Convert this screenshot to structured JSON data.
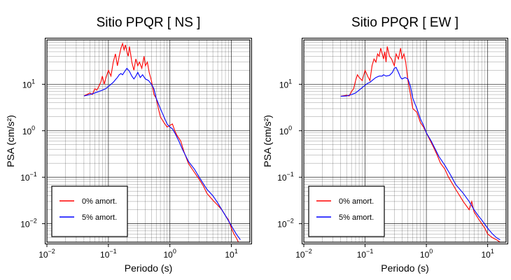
{
  "colors": {
    "red": "#ff0000",
    "blue": "#0000ff",
    "grid": "#000000",
    "axis": "#000000"
  },
  "chart_data": [
    {
      "type": "line",
      "title": "Sitio PPQR [ NS ]",
      "xlabel": "Periodo (s)",
      "ylabel": "PSA (cm/s²)",
      "x_scale": "log",
      "y_scale": "log",
      "xlim": [
        0.01,
        20
      ],
      "ylim": [
        0.004,
        90
      ],
      "x_ticks": [
        {
          "v": 0.01,
          "b": "10",
          "e": "−2"
        },
        {
          "v": 0.1,
          "b": "10",
          "e": "−1"
        },
        {
          "v": 1,
          "b": "10",
          "e": "0"
        },
        {
          "v": 10,
          "b": "10",
          "e": "1"
        }
      ],
      "y_ticks": [
        {
          "v": 0.01,
          "b": "10",
          "e": "−2"
        },
        {
          "v": 0.1,
          "b": "10",
          "e": "−1"
        },
        {
          "v": 1,
          "b": "10",
          "e": "0"
        },
        {
          "v": 10,
          "b": "10",
          "e": "1"
        }
      ],
      "grid": true,
      "legend_position": "bottom-left",
      "series": [
        {
          "name": "0% amort.",
          "color": "#ff0000",
          "x": [
            0.04,
            0.05,
            0.055,
            0.06,
            0.065,
            0.07,
            0.075,
            0.08,
            0.085,
            0.09,
            0.1,
            0.11,
            0.12,
            0.13,
            0.14,
            0.15,
            0.16,
            0.17,
            0.18,
            0.19,
            0.2,
            0.21,
            0.22,
            0.23,
            0.24,
            0.26,
            0.28,
            0.3,
            0.32,
            0.35,
            0.38,
            0.4,
            0.43,
            0.46,
            0.5,
            0.55,
            0.6,
            0.65,
            0.7,
            0.8,
            0.9,
            1.0,
            1.1,
            1.2,
            1.3,
            1.5,
            1.7,
            2.0,
            2.3,
            2.7,
            3.0,
            3.5,
            4.0,
            5.0,
            6.0,
            7.0,
            8.0,
            9.0,
            10.0,
            11.0,
            12.0,
            13.0
          ],
          "y": [
            5.6,
            6.5,
            6.0,
            8.0,
            7.5,
            9.0,
            11.0,
            15.0,
            10.0,
            13.0,
            20.0,
            15.0,
            30.0,
            45.0,
            25.0,
            40.0,
            60.0,
            75.0,
            55.0,
            70.0,
            50.0,
            40.0,
            65.0,
            45.0,
            30.0,
            20.0,
            35.0,
            25.0,
            30.0,
            22.0,
            40.0,
            25.0,
            30.0,
            18.0,
            12.0,
            6.0,
            5.0,
            3.0,
            2.0,
            1.5,
            1.2,
            1.3,
            1.4,
            1.0,
            0.8,
            0.6,
            0.35,
            0.2,
            0.15,
            0.11,
            0.09,
            0.065,
            0.045,
            0.032,
            0.025,
            0.02,
            0.015,
            0.012,
            0.008,
            0.006,
            0.005,
            0.004
          ]
        },
        {
          "name": "5% amort.",
          "color": "#0000ff",
          "x": [
            0.04,
            0.05,
            0.06,
            0.07,
            0.08,
            0.09,
            0.1,
            0.11,
            0.12,
            0.13,
            0.14,
            0.15,
            0.16,
            0.17,
            0.18,
            0.19,
            0.2,
            0.22,
            0.24,
            0.26,
            0.28,
            0.3,
            0.33,
            0.36,
            0.4,
            0.45,
            0.5,
            0.55,
            0.6,
            0.7,
            0.8,
            0.9,
            1.0,
            1.1,
            1.2,
            1.4,
            1.6,
            2.0,
            2.5,
            3.0,
            4.0,
            5.0,
            6.0,
            7.0,
            8.0,
            10.0,
            12.0,
            14.0
          ],
          "y": [
            5.6,
            6.0,
            6.5,
            7.0,
            7.5,
            8.0,
            9.0,
            10.0,
            11.0,
            12.5,
            14.0,
            16.0,
            17.0,
            16.0,
            18.0,
            20.0,
            22.0,
            19.0,
            15.0,
            13.0,
            15.0,
            18.0,
            14.0,
            16.0,
            13.0,
            12.0,
            10.0,
            8.0,
            5.0,
            3.0,
            2.0,
            1.4,
            1.2,
            1.1,
            0.9,
            0.6,
            0.4,
            0.22,
            0.15,
            0.1,
            0.055,
            0.04,
            0.028,
            0.02,
            0.015,
            0.009,
            0.006,
            0.0045
          ]
        }
      ]
    },
    {
      "type": "line",
      "title": "Sitio PPQR [ EW ]",
      "xlabel": "Periodo (s)",
      "ylabel": "PSA (cm/s²)",
      "x_scale": "log",
      "y_scale": "log",
      "xlim": [
        0.01,
        20
      ],
      "ylim": [
        0.004,
        90
      ],
      "x_ticks": [
        {
          "v": 0.01,
          "b": "10",
          "e": "−2"
        },
        {
          "v": 0.1,
          "b": "10",
          "e": "−1"
        },
        {
          "v": 1,
          "b": "10",
          "e": "0"
        },
        {
          "v": 10,
          "b": "10",
          "e": "1"
        }
      ],
      "y_ticks": [
        {
          "v": 0.01,
          "b": "10",
          "e": "−2"
        },
        {
          "v": 0.1,
          "b": "10",
          "e": "−1"
        },
        {
          "v": 1,
          "b": "10",
          "e": "0"
        },
        {
          "v": 10,
          "b": "10",
          "e": "1"
        }
      ],
      "grid": true,
      "legend_position": "bottom-left",
      "series": [
        {
          "name": "0% amort.",
          "color": "#ff0000",
          "x": [
            0.04,
            0.05,
            0.055,
            0.06,
            0.065,
            0.07,
            0.075,
            0.08,
            0.09,
            0.1,
            0.11,
            0.12,
            0.13,
            0.14,
            0.15,
            0.16,
            0.17,
            0.18,
            0.19,
            0.2,
            0.21,
            0.22,
            0.23,
            0.25,
            0.27,
            0.3,
            0.32,
            0.35,
            0.38,
            0.4,
            0.43,
            0.46,
            0.5,
            0.55,
            0.6,
            0.7,
            0.8,
            0.9,
            1.0,
            1.1,
            1.3,
            1.5,
            1.7,
            2.0,
            2.3,
            2.7,
            3.0,
            3.5,
            4.0,
            5.0,
            5.5,
            6.0,
            7.0,
            8.0,
            9.0,
            10.0,
            12.0,
            14.0,
            16.0
          ],
          "y": [
            5.5,
            5.8,
            5.6,
            7.0,
            8.0,
            12.0,
            16.0,
            14.0,
            12.0,
            20.0,
            15.0,
            12.0,
            25.0,
            35.0,
            30.0,
            45.0,
            40.0,
            60.0,
            45.0,
            35.0,
            50.0,
            30.0,
            65.0,
            40.0,
            35.0,
            25.0,
            45.0,
            35.0,
            60.0,
            35.0,
            45.0,
            30.0,
            12.0,
            6.0,
            3.0,
            2.5,
            1.5,
            1.2,
            0.9,
            0.7,
            0.45,
            0.3,
            0.2,
            0.15,
            0.1,
            0.07,
            0.055,
            0.04,
            0.03,
            0.02,
            0.03,
            0.018,
            0.013,
            0.01,
            0.008,
            0.006,
            0.005,
            0.0045,
            0.004
          ]
        },
        {
          "name": "5% amort.",
          "color": "#0000ff",
          "x": [
            0.04,
            0.05,
            0.06,
            0.07,
            0.08,
            0.09,
            0.1,
            0.11,
            0.12,
            0.13,
            0.14,
            0.15,
            0.17,
            0.19,
            0.2,
            0.22,
            0.25,
            0.28,
            0.3,
            0.32,
            0.35,
            0.38,
            0.4,
            0.45,
            0.5,
            0.55,
            0.6,
            0.7,
            0.8,
            0.9,
            1.0,
            1.2,
            1.4,
            1.6,
            2.0,
            2.5,
            3.0,
            4.0,
            5.0,
            6.0,
            7.0,
            8.0,
            10.0,
            12.0,
            14.0,
            16.0
          ],
          "y": [
            5.5,
            5.6,
            6.0,
            6.5,
            7.5,
            8.5,
            9.5,
            10.5,
            11.0,
            12.0,
            13.0,
            14.0,
            15.0,
            15.0,
            16.0,
            15.0,
            15.5,
            18.0,
            22.0,
            23.0,
            18.0,
            14.0,
            13.0,
            14.0,
            13.0,
            9.0,
            5.0,
            3.0,
            1.8,
            1.3,
            0.9,
            0.6,
            0.4,
            0.28,
            0.18,
            0.11,
            0.07,
            0.045,
            0.03,
            0.02,
            0.015,
            0.012,
            0.008,
            0.006,
            0.005,
            0.0045
          ]
        }
      ]
    }
  ]
}
